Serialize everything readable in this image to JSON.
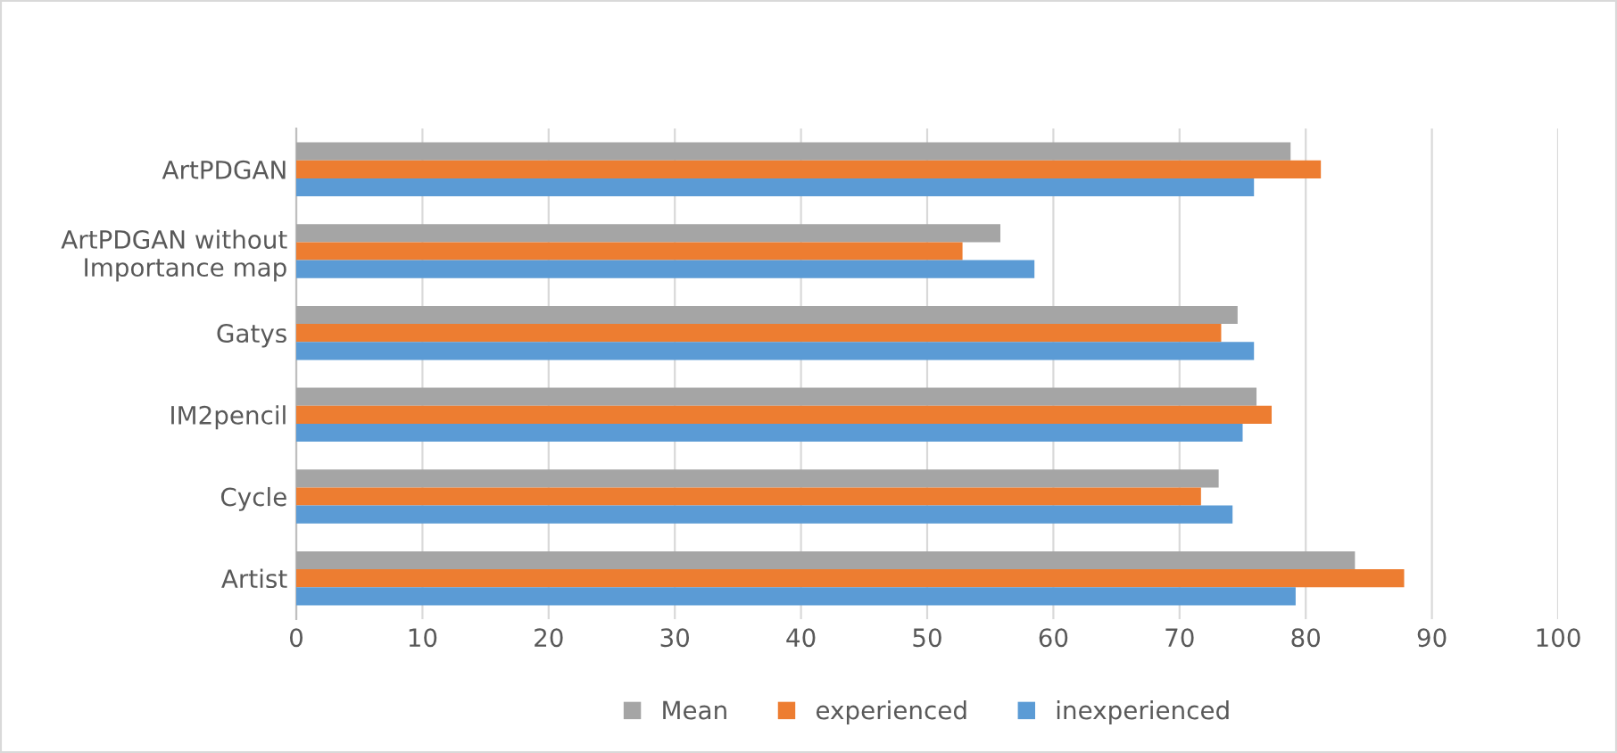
{
  "chart_data": {
    "type": "bar",
    "orientation": "horizontal",
    "categories": [
      "ArtPDGAN",
      "ArtPDGAN without\nImportance map",
      "Gatys",
      "IM2pencil",
      "Cycle",
      "Artist"
    ],
    "series": [
      {
        "name": "Mean",
        "color": "#a5a5a5",
        "values": [
          78.8,
          55.8,
          74.6,
          76.1,
          73.1,
          83.9
        ]
      },
      {
        "name": "experienced",
        "color": "#ed7d31",
        "values": [
          81.2,
          52.8,
          73.3,
          77.3,
          71.7,
          87.8
        ]
      },
      {
        "name": "inexperienced",
        "color": "#5b9bd5",
        "values": [
          75.9,
          58.5,
          75.9,
          75.0,
          74.2,
          79.2
        ]
      }
    ],
    "xlim": [
      0,
      100
    ],
    "xticks": [
      0,
      10,
      20,
      30,
      40,
      50,
      60,
      70,
      80,
      90,
      100
    ],
    "grid": "x",
    "legend": "bottom"
  }
}
